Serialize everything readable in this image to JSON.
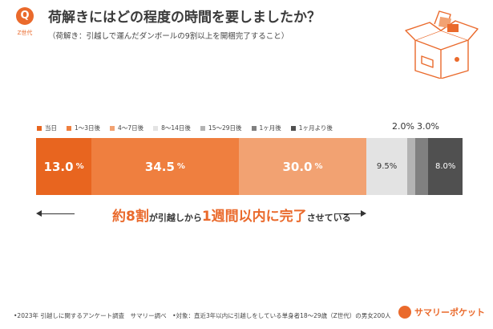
{
  "header": {
    "badge": "Q",
    "badge_sub": "Z世代",
    "title": "荷解きにはどの程度の時間を要しましたか？",
    "subtitle": "（荷解き：引越しで運んだダンボールの9割以上を開梱完了すること）"
  },
  "colors": {
    "accent": "#ea6a2c",
    "same_day": "#e8651f",
    "d1_3": "#ef7f3f",
    "d4_7": "#f2a272",
    "d8_14": "#e3e3e3",
    "d15_29": "#b3b3b3",
    "m1": "#808080",
    "over_m1": "#505050"
  },
  "chart_data": {
    "type": "bar",
    "orientation": "horizontal-stacked",
    "title": "荷解きにはどの程度の時間を要しましたか？",
    "categories": [
      "当日",
      "1〜3日後",
      "4〜7日後",
      "8〜14日後",
      "15〜29日後",
      "1ヶ月後",
      "1ヶ月より後"
    ],
    "series": [
      {
        "label": "当日",
        "value": 13.0,
        "display": "13.0",
        "unit": "%",
        "color": "#e8651f",
        "label_position": "inside",
        "text_color": "#ffffff"
      },
      {
        "label": "1〜3日後",
        "value": 34.5,
        "display": "34.5",
        "unit": "%",
        "color": "#ef7f3f",
        "label_position": "inside",
        "text_color": "#ffffff"
      },
      {
        "label": "4〜7日後",
        "value": 30.0,
        "display": "30.0",
        "unit": "%",
        "color": "#f2a272",
        "label_position": "inside",
        "text_color": "#ffffff"
      },
      {
        "label": "8〜14日後",
        "value": 9.5,
        "display": "9.5%",
        "unit": "",
        "color": "#e3e3e3",
        "label_position": "inside",
        "text_color": "#333333"
      },
      {
        "label": "15〜29日後",
        "value": 2.0,
        "display": "2.0%",
        "unit": "",
        "color": "#b3b3b3",
        "label_position": "above",
        "text_color": "#333333"
      },
      {
        "label": "1ヶ月後",
        "value": 3.0,
        "display": "3.0%",
        "unit": "",
        "color": "#808080",
        "label_position": "above",
        "text_color": "#333333"
      },
      {
        "label": "1ヶ月より後",
        "value": 8.0,
        "display": "8.0%",
        "unit": "",
        "color": "#505050",
        "label_position": "inside",
        "text_color": "#ffffff"
      }
    ],
    "total": 100,
    "legend_position": "top-left"
  },
  "callout": {
    "part1": "約8割",
    "part2": "が引越しから",
    "part3": "1週間以内に完了",
    "part4": "させている"
  },
  "footer": {
    "note": "•2023年 引越しに関するアンケート調査　サマリー調べ　•対象：直近3年以内に引越しをしている単身者18〜29歳（Z世代）の男女200人",
    "brand": "サマリーポケット"
  }
}
